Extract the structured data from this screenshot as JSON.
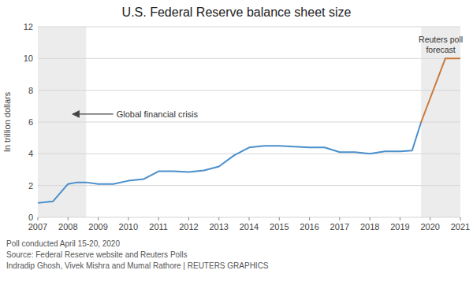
{
  "chart_data": {
    "type": "line",
    "title": "U.S. Federal Reserve balance sheet size",
    "y_label": "In trillion dollars",
    "xlim": [
      2007,
      2021
    ],
    "ylim": [
      0,
      12
    ],
    "xticks": [
      2007,
      2008,
      2009,
      2010,
      2011,
      2012,
      2013,
      2014,
      2015,
      2016,
      2017,
      2018,
      2019,
      2020,
      2021
    ],
    "yticks": [
      0,
      2,
      4,
      6,
      8,
      10,
      12
    ],
    "grid": true,
    "series": [
      {
        "color": "#4a8fcc",
        "x": [
          2007.0,
          2007.5,
          2008.0,
          2008.3,
          2008.6,
          2009.0,
          2009.5,
          2010.0,
          2010.5,
          2011.0,
          2011.5,
          2012.0,
          2012.5,
          2013.0,
          2013.5,
          2014.0,
          2014.5,
          2015.0,
          2015.5,
          2016.0,
          2016.5,
          2017.0,
          2017.5,
          2018.0,
          2018.5,
          2019.0,
          2019.4,
          2019.7
        ],
        "values": [
          0.9,
          1.0,
          2.1,
          2.2,
          2.2,
          2.1,
          2.1,
          2.3,
          2.4,
          2.9,
          2.9,
          2.85,
          2.95,
          3.2,
          3.9,
          4.4,
          4.5,
          4.5,
          4.45,
          4.4,
          4.4,
          4.1,
          4.1,
          4.0,
          4.15,
          4.15,
          4.2,
          6.0
        ]
      },
      {
        "color": "#c8793a",
        "x": [
          2019.7,
          2020.0,
          2020.5,
          2021.0
        ],
        "values": [
          6.0,
          7.5,
          10.0,
          10.0
        ]
      }
    ],
    "shaded_regions": [
      [
        2007,
        2008.6
      ],
      [
        2019.7,
        2021
      ]
    ],
    "annotations": [
      {
        "text": "Global financial crisis",
        "x": 2009.5,
        "arrow_to": 2008.15,
        "y": 6.5
      },
      {
        "text": "Reuters poll\nforecast",
        "x": 2020.35,
        "y": 11.5
      }
    ],
    "footer": [
      "Poll conducted April 15-20, 2020",
      "Source: Federal Reserve website and Reuters Polls",
      "Indradip Ghosh, Vivek Mishra and Mumal Rathore | REUTERS GRAPHICS"
    ]
  }
}
